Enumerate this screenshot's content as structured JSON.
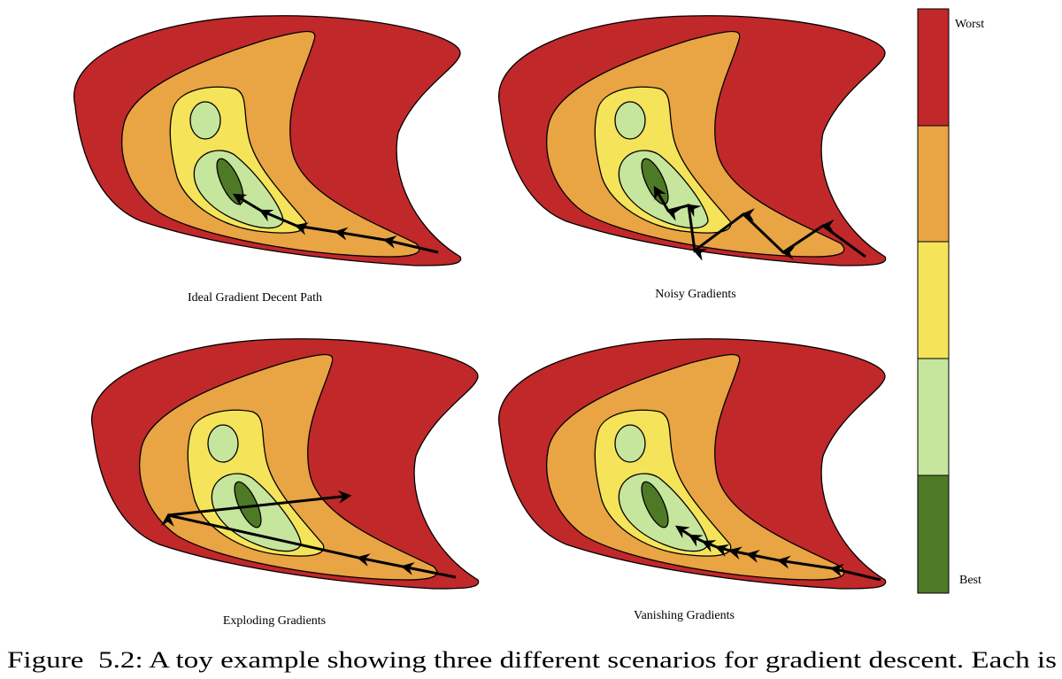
{
  "panels": [
    {
      "title": "Ideal Gradient Decent Path"
    },
    {
      "title": "Noisy Gradients"
    },
    {
      "title": "Exploding Gradients"
    },
    {
      "title": "Vanishing Gradients"
    }
  ],
  "colorbar": {
    "top_label": "Worst",
    "bottom_label": "Best"
  },
  "caption": "Figure  5.2: A toy example showing three different scenarios for gradient descent. Each is"
}
